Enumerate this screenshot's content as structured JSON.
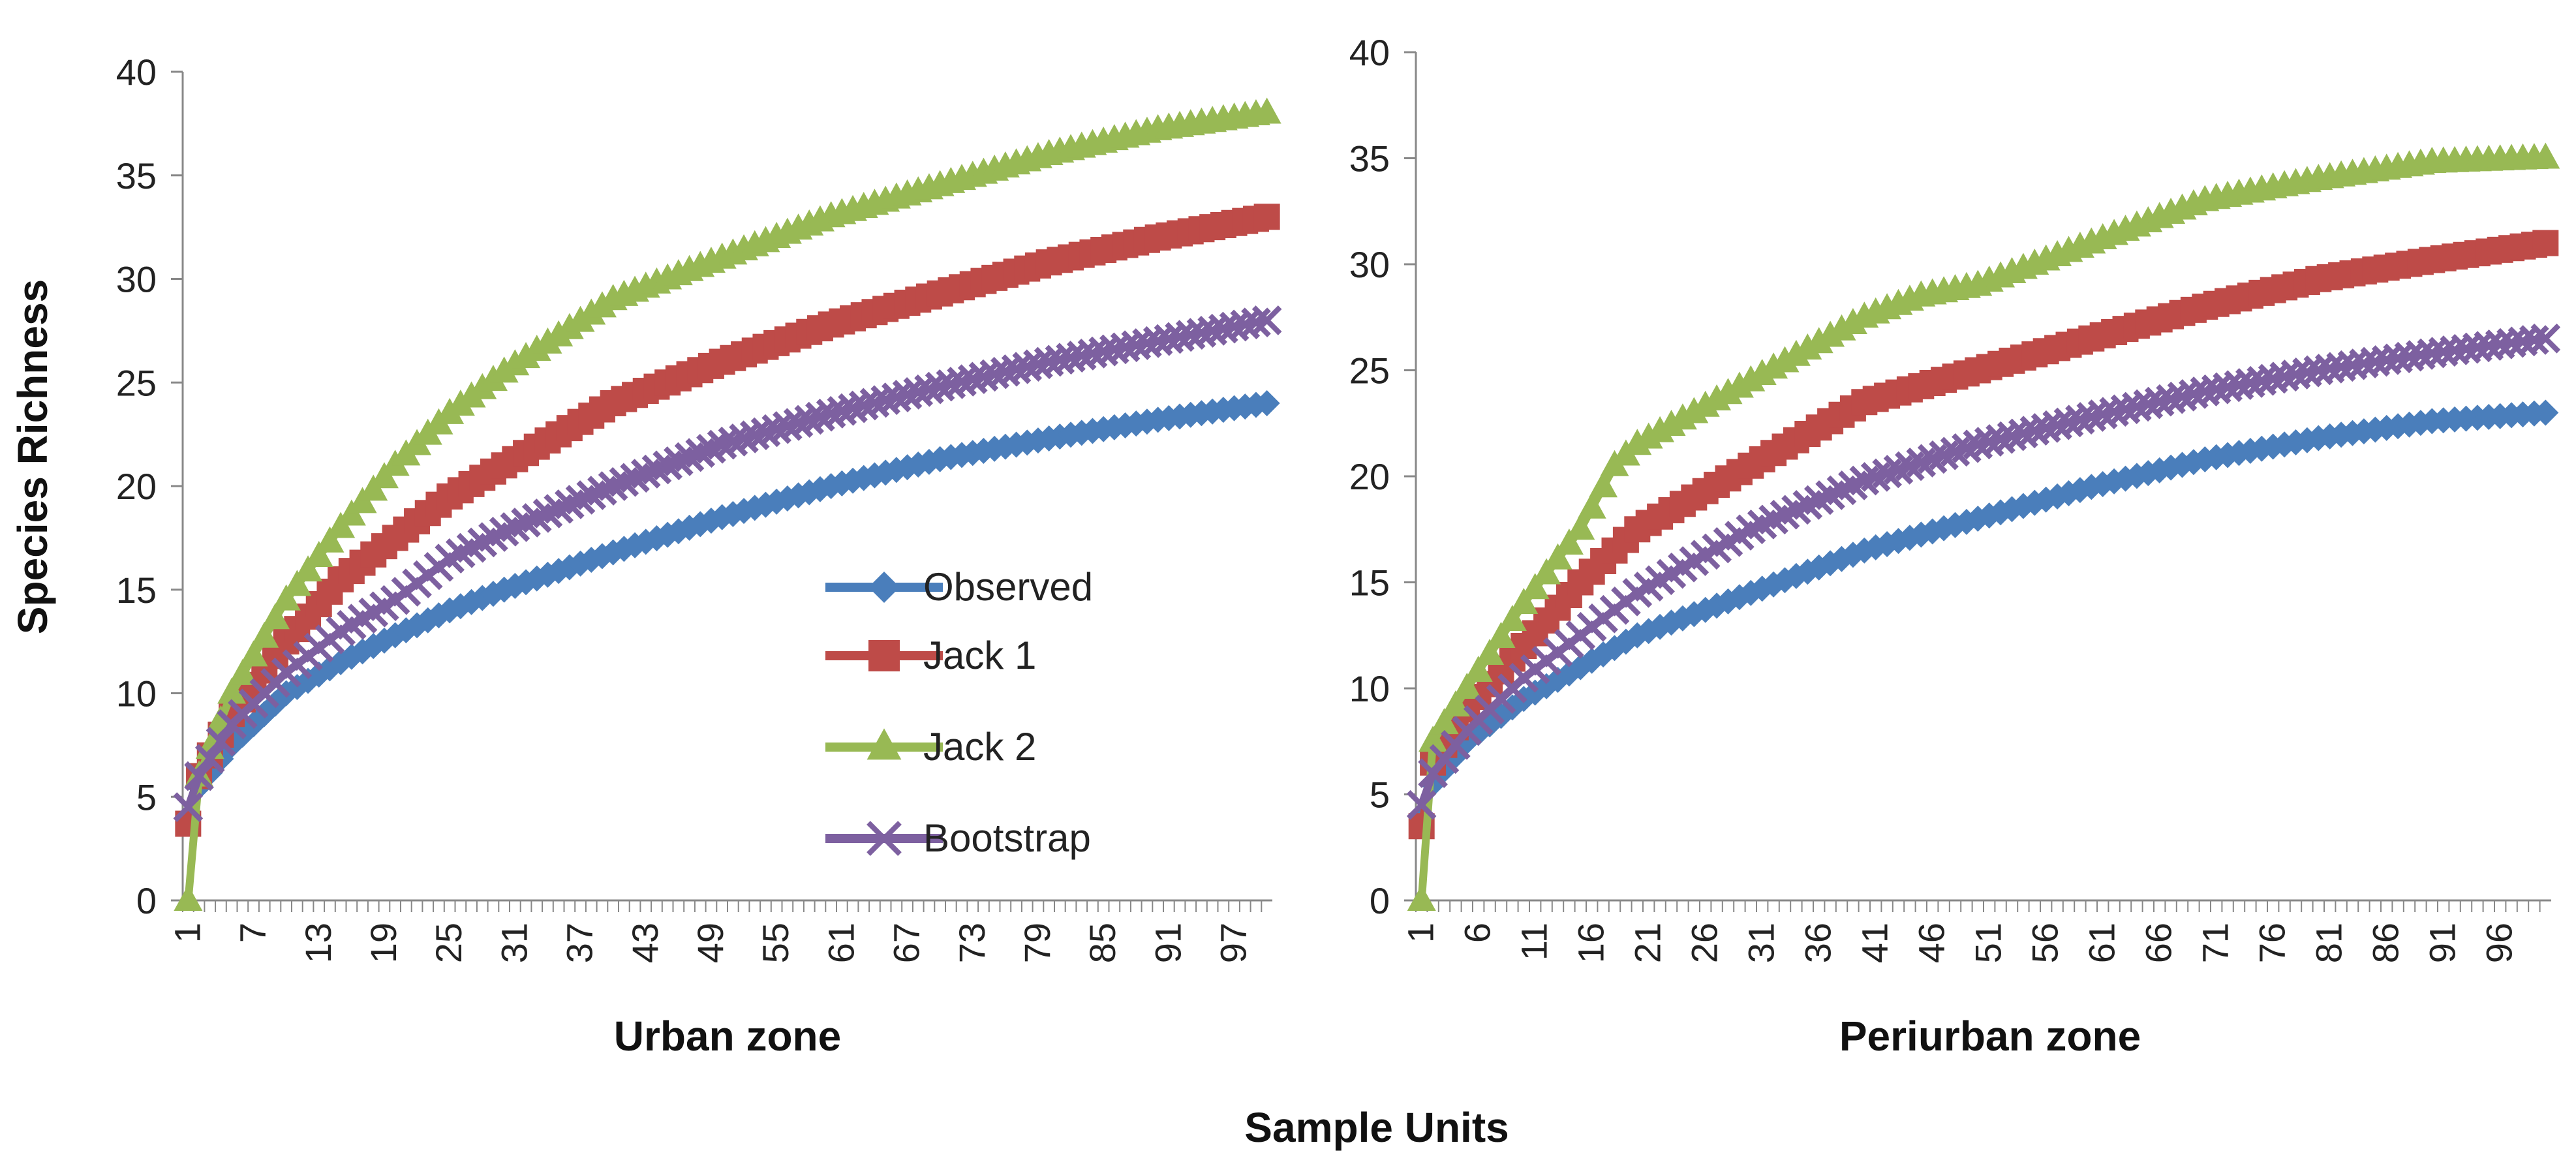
{
  "figure": {
    "ylabel": "Species Richness",
    "xlabel": "Sample Units"
  },
  "legend": {
    "placement": "inside-left-panel, lower-right",
    "items": [
      {
        "series": "Observed",
        "color": "#4a7ebb",
        "marker": "diamond"
      },
      {
        "series": "Jack 1",
        "color": "#be4b48",
        "marker": "square"
      },
      {
        "series": "Jack 2",
        "color": "#98b954",
        "marker": "triangle"
      },
      {
        "series": "Bootstrap",
        "color": "#7d60a0",
        "marker": "x"
      }
    ]
  },
  "chart_data": [
    {
      "type": "line",
      "subtitle": "Urban zone",
      "x_range": [
        1,
        100
      ],
      "x_ticks": [
        1,
        7,
        13,
        19,
        25,
        31,
        37,
        43,
        49,
        55,
        61,
        67,
        73,
        79,
        85,
        91,
        97
      ],
      "y_ticks": [
        0,
        5,
        10,
        15,
        20,
        25,
        30,
        35,
        40
      ],
      "ylim": [
        0,
        40
      ],
      "grid": false,
      "series": [
        {
          "name": "Observed",
          "color": "#4a7ebb",
          "marker": "diamond",
          "points": [
            [
              1,
              4
            ],
            [
              2,
              5.5
            ],
            [
              5,
              7.5
            ],
            [
              10,
              10
            ],
            [
              15,
              11.5
            ],
            [
              20,
              12.8
            ],
            [
              25,
              14
            ],
            [
              30,
              15
            ],
            [
              40,
              16.8
            ],
            [
              50,
              18.5
            ],
            [
              60,
              20
            ],
            [
              70,
              21.3
            ],
            [
              80,
              22.3
            ],
            [
              90,
              23.2
            ],
            [
              100,
              24
            ]
          ]
        },
        {
          "name": "Jack 1",
          "color": "#be4b48",
          "marker": "square",
          "points": [
            [
              1,
              3.7
            ],
            [
              2,
              6
            ],
            [
              5,
              9
            ],
            [
              10,
              12.5
            ],
            [
              15,
              15.5
            ],
            [
              20,
              17.5
            ],
            [
              25,
              19.5
            ],
            [
              30,
              21
            ],
            [
              40,
              24
            ],
            [
              50,
              26
            ],
            [
              60,
              27.8
            ],
            [
              70,
              29.3
            ],
            [
              80,
              30.8
            ],
            [
              90,
              32
            ],
            [
              100,
              33
            ]
          ]
        },
        {
          "name": "Jack 2",
          "color": "#98b954",
          "marker": "triangle",
          "points": [
            [
              1,
              0
            ],
            [
              2,
              6
            ],
            [
              5,
              10
            ],
            [
              10,
              14.5
            ],
            [
              15,
              18
            ],
            [
              20,
              21
            ],
            [
              25,
              23.5
            ],
            [
              30,
              25.5
            ],
            [
              40,
              29
            ],
            [
              50,
              31
            ],
            [
              60,
              33
            ],
            [
              70,
              34.5
            ],
            [
              80,
              36
            ],
            [
              90,
              37.2
            ],
            [
              100,
              38
            ]
          ]
        },
        {
          "name": "Bootstrap",
          "color": "#7d60a0",
          "marker": "x",
          "points": [
            [
              1,
              4.5
            ],
            [
              2,
              6
            ],
            [
              5,
              8.5
            ],
            [
              10,
              11
            ],
            [
              15,
              13
            ],
            [
              20,
              14.5
            ],
            [
              25,
              16.5
            ],
            [
              30,
              17.8
            ],
            [
              40,
              20
            ],
            [
              50,
              22
            ],
            [
              60,
              23.5
            ],
            [
              70,
              24.8
            ],
            [
              80,
              26
            ],
            [
              90,
              27
            ],
            [
              100,
              28
            ]
          ]
        }
      ]
    },
    {
      "type": "line",
      "subtitle": "Periurban zone",
      "x_range": [
        1,
        100
      ],
      "x_ticks": [
        1,
        6,
        11,
        16,
        21,
        26,
        31,
        36,
        41,
        46,
        51,
        56,
        61,
        66,
        71,
        76,
        81,
        86,
        91,
        96
      ],
      "y_ticks": [
        0,
        5,
        10,
        15,
        20,
        25,
        30,
        35,
        40
      ],
      "ylim": [
        0,
        40
      ],
      "grid": false,
      "series": [
        {
          "name": "Observed",
          "color": "#4a7ebb",
          "marker": "diamond",
          "points": [
            [
              1,
              4
            ],
            [
              2,
              5.5
            ],
            [
              5,
              7.5
            ],
            [
              10,
              9.5
            ],
            [
              15,
              11
            ],
            [
              20,
              12.5
            ],
            [
              25,
              13.5
            ],
            [
              30,
              14.5
            ],
            [
              40,
              16.5
            ],
            [
              50,
              18
            ],
            [
              60,
              19.5
            ],
            [
              70,
              20.8
            ],
            [
              80,
              21.8
            ],
            [
              90,
              22.6
            ],
            [
              100,
              23
            ]
          ]
        },
        {
          "name": "Jack 1",
          "color": "#be4b48",
          "marker": "square",
          "points": [
            [
              1,
              3.5
            ],
            [
              2,
              6.5
            ],
            [
              5,
              9
            ],
            [
              10,
              12
            ],
            [
              15,
              15
            ],
            [
              20,
              17.5
            ],
            [
              25,
              19
            ],
            [
              30,
              20.5
            ],
            [
              40,
              23.5
            ],
            [
              50,
              25
            ],
            [
              60,
              26.5
            ],
            [
              70,
              28
            ],
            [
              80,
              29.3
            ],
            [
              90,
              30.2
            ],
            [
              100,
              31
            ]
          ]
        },
        {
          "name": "Jack 2",
          "color": "#98b954",
          "marker": "triangle",
          "points": [
            [
              1,
              0
            ],
            [
              2,
              7.5
            ],
            [
              5,
              10
            ],
            [
              10,
              14
            ],
            [
              15,
              17.5
            ],
            [
              18,
              20.5
            ],
            [
              20,
              21.5
            ],
            [
              25,
              23
            ],
            [
              30,
              24.5
            ],
            [
              40,
              27.5
            ],
            [
              45,
              28.5
            ],
            [
              50,
              29
            ],
            [
              60,
              31
            ],
            [
              70,
              33
            ],
            [
              80,
              34
            ],
            [
              90,
              34.8
            ],
            [
              100,
              35
            ]
          ]
        },
        {
          "name": "Bootstrap",
          "color": "#7d60a0",
          "marker": "x",
          "points": [
            [
              1,
              4.5
            ],
            [
              2,
              6
            ],
            [
              5,
              8
            ],
            [
              10,
              10.5
            ],
            [
              15,
              12.5
            ],
            [
              20,
              14.5
            ],
            [
              25,
              16
            ],
            [
              30,
              17.5
            ],
            [
              40,
              19.8
            ],
            [
              50,
              21.5
            ],
            [
              60,
              22.8
            ],
            [
              70,
              24
            ],
            [
              80,
              25
            ],
            [
              90,
              25.8
            ],
            [
              100,
              26.5
            ]
          ]
        }
      ]
    }
  ]
}
